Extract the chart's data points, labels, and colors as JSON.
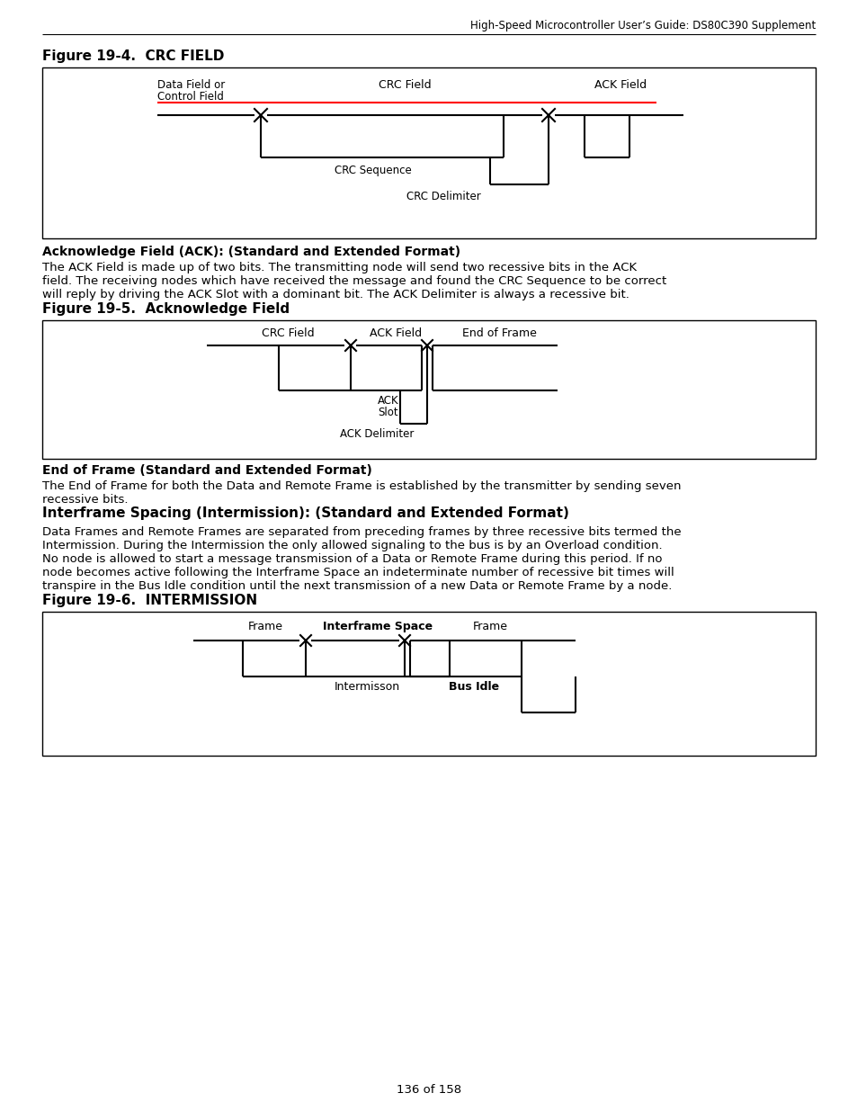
{
  "page_header": "High-Speed Microcontroller User’s Guide: DS80C390 Supplement",
  "page_number": "136 of 158",
  "bg_color": "#ffffff",
  "text_color": "#000000",
  "fig4_title": "Figure 19-4.  CRC FIELD",
  "fig5_title": "Figure 19-5.  Acknowledge Field",
  "fig6_title": "Figure 19-6.  INTERMISSION",
  "ack_heading": "Acknowledge Field (ACK): (Standard and Extended Format)",
  "ack_text1": "The ACK Field is made up of two bits. The transmitting node will send two recessive bits in the ACK",
  "ack_text2": "field. The receiving nodes which have received the message and found the CRC Sequence to be correct",
  "ack_text3": "will reply by driving the ACK Slot with a dominant bit. The ACK Delimiter is always a recessive bit.",
  "eof_heading": "End of Frame (Standard and Extended Format)",
  "eof_text1": "The End of Frame for both the Data and Remote Frame is established by the transmitter by sending seven",
  "eof_text2": "recessive bits.",
  "interframe_heading": "Interframe Spacing (Intermission): (Standard and Extended Format)",
  "interframe_text1": "Data Frames and Remote Frames are separated from preceding frames by three recessive bits termed the",
  "interframe_text2": "Intermission. During the Intermission the only allowed signaling to the bus is by an Overload condition.",
  "interframe_text3": "No node is allowed to start a message transmission of a Data or Remote Frame during this period. If no",
  "interframe_text4": "node becomes active following the Interframe Space an indeterminate number of recessive bit times will",
  "interframe_text5": "transpire in the Bus Idle condition until the next transmission of a new Data or Remote Frame by a node."
}
